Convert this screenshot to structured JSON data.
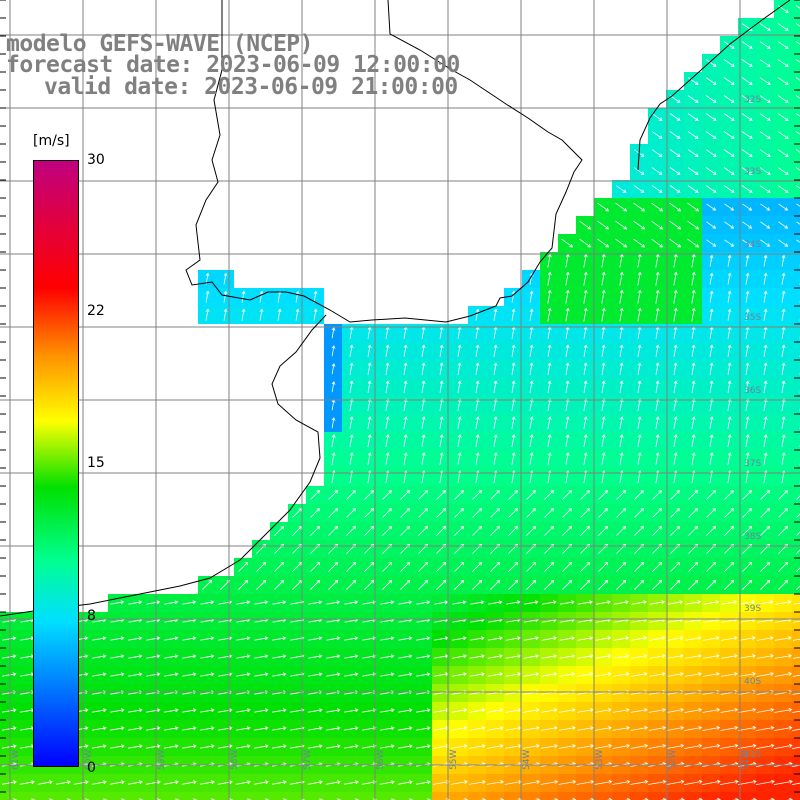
{
  "title": {
    "line1": "modelo GEFS-WAVE (NCEP)",
    "line2": "forecast date: 2023-06-09 12:00:00",
    "line3": "valid date: 2023-06-09 21:00:00"
  },
  "colorbar": {
    "unit": "[m/s]",
    "ticks": [
      "30",
      "22",
      "15",
      "8",
      "0"
    ],
    "colors": [
      "#0000ff",
      "#0070ff",
      "#00e0ff",
      "#00ff90",
      "#00e000",
      "#ffff00",
      "#ff9000",
      "#ff0000",
      "#c00080"
    ]
  },
  "lat_labels": [
    "32S",
    "33S",
    "34S",
    "35S",
    "36S",
    "37S",
    "38S",
    "39S",
    "40S",
    "41S"
  ],
  "lon_labels": [
    "61W",
    "60W",
    "59W",
    "58W",
    "57W",
    "56W",
    "55W",
    "54W",
    "53W",
    "52W",
    "51W"
  ],
  "colors": {
    "land": "#ffffff",
    "grid": "#808080",
    "coast": "#000000",
    "arrow": "#ffffff"
  }
}
